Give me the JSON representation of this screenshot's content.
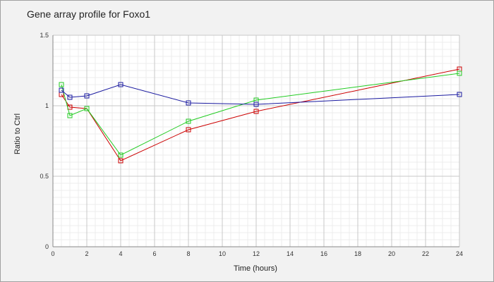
{
  "chart_data": {
    "type": "line",
    "title": "Gene array profile for Foxo1",
    "xlabel": "Time (hours)",
    "ylabel": "Ratio to Ctrl",
    "xlim": [
      0,
      24
    ],
    "ylim": [
      0,
      1.5
    ],
    "xticks": [
      0,
      2,
      4,
      6,
      8,
      10,
      12,
      14,
      16,
      18,
      20,
      22,
      24
    ],
    "yticks": [
      0,
      0.5,
      1,
      1.5
    ],
    "ytick_labels": [
      "0",
      "0.5",
      "1",
      "1.5"
    ],
    "grid": true,
    "legend": "none",
    "series": [
      {
        "color": "#cc0000",
        "points": [
          [
            0.5,
            1.08
          ],
          [
            1,
            0.99
          ],
          [
            2,
            0.98
          ],
          [
            4,
            0.61
          ],
          [
            8,
            0.83
          ],
          [
            12,
            0.96
          ],
          [
            24,
            1.26
          ]
        ]
      },
      {
        "color": "#22cc22",
        "points": [
          [
            0.5,
            1.15
          ],
          [
            1,
            0.93
          ],
          [
            2,
            0.98
          ],
          [
            4,
            0.65
          ],
          [
            8,
            0.89
          ],
          [
            12,
            1.04
          ],
          [
            24,
            1.23
          ]
        ]
      },
      {
        "color": "#1a1aa0",
        "points": [
          [
            0.5,
            1.11
          ],
          [
            1,
            1.06
          ],
          [
            2,
            1.07
          ],
          [
            4,
            1.15
          ],
          [
            8,
            1.02
          ],
          [
            12,
            1.01
          ],
          [
            24,
            1.08
          ]
        ]
      }
    ]
  }
}
